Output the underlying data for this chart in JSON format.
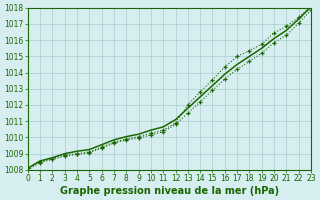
{
  "x": [
    0,
    1,
    2,
    3,
    4,
    5,
    6,
    7,
    8,
    9,
    10,
    11,
    12,
    13,
    14,
    15,
    16,
    17,
    18,
    19,
    20,
    21,
    22,
    23
  ],
  "line_smooth": [
    1008.1,
    1008.55,
    1008.75,
    1009.0,
    1009.15,
    1009.25,
    1009.55,
    1009.85,
    1010.05,
    1010.2,
    1010.45,
    1010.65,
    1011.1,
    1011.8,
    1012.5,
    1013.2,
    1013.9,
    1014.5,
    1015.0,
    1015.5,
    1016.1,
    1016.6,
    1017.3,
    1018.05
  ],
  "line_upper": [
    1008.1,
    1008.5,
    1008.7,
    1008.9,
    1009.0,
    1009.1,
    1009.4,
    1009.7,
    1009.9,
    1010.05,
    1010.25,
    1010.45,
    1010.9,
    1012.0,
    1012.8,
    1013.55,
    1014.35,
    1015.0,
    1015.35,
    1015.75,
    1016.45,
    1016.85,
    1017.4,
    1018.1
  ],
  "line_lower": [
    1008.0,
    1008.45,
    1008.65,
    1008.85,
    1008.95,
    1009.05,
    1009.35,
    1009.65,
    1009.85,
    1009.95,
    1010.15,
    1010.35,
    1010.8,
    1011.5,
    1012.2,
    1012.9,
    1013.6,
    1014.2,
    1014.7,
    1015.2,
    1015.85,
    1016.3,
    1017.05,
    1017.85
  ],
  "xlim": [
    0,
    23
  ],
  "ylim": [
    1008,
    1018
  ],
  "yticks": [
    1008,
    1009,
    1010,
    1011,
    1012,
    1013,
    1014,
    1015,
    1016,
    1017,
    1018
  ],
  "xticks": [
    0,
    1,
    2,
    3,
    4,
    5,
    6,
    7,
    8,
    9,
    10,
    11,
    12,
    13,
    14,
    15,
    16,
    17,
    18,
    19,
    20,
    21,
    22,
    23
  ],
  "xlabel": "Graphe pression niveau de la mer (hPa)",
  "line_color": "#1a6600",
  "bg_color": "#d6eef0",
  "grid_color": "#a8cdd0",
  "tick_color": "#1a6600",
  "label_color": "#1a6600",
  "tick_fontsize": 5.5,
  "label_fontsize": 7
}
